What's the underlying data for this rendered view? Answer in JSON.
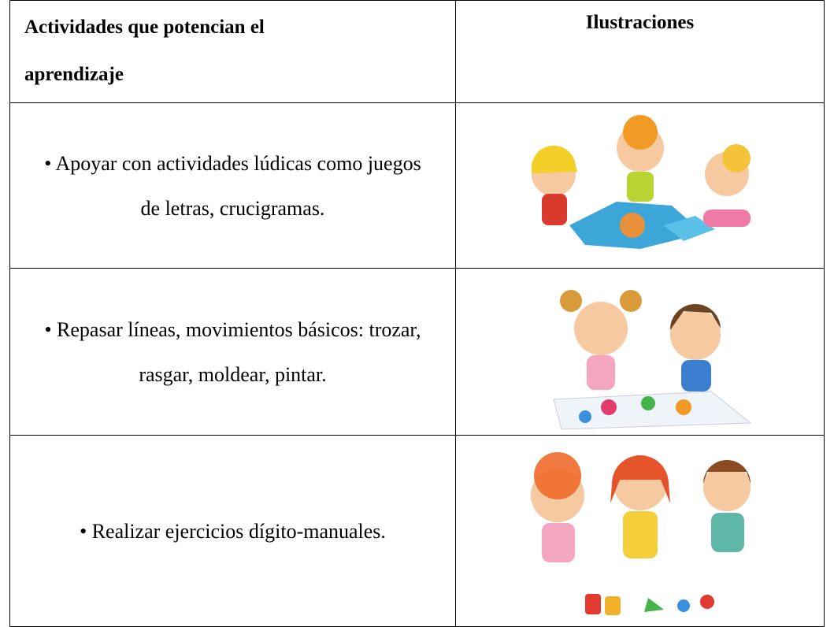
{
  "table": {
    "header": [
      "Actividades que potencian el aprendizaje",
      "Ilustraciones"
    ],
    "rows": [
      [
        "• Apoyar con actividades lúdicas como juegos de letras, crucigramas."
      ],
      [
        "• Repasar líneas, movimientos básicos: trozar, rasgar, moldear, pintar."
      ],
      [
        "• Realizar ejercicios dígito-manuales."
      ]
    ]
  }
}
